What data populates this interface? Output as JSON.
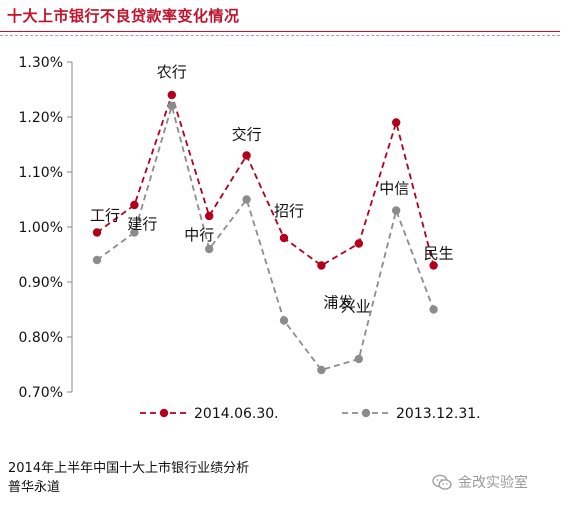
{
  "header": {
    "title": "十大上市银行不良贷款率变化情况"
  },
  "chart_data": {
    "type": "line",
    "categories": [
      "工行",
      "建行",
      "农行",
      "中行",
      "交行",
      "招行",
      "浦发",
      "兴业",
      "中信",
      "民生"
    ],
    "series": [
      {
        "name": "2014.06.30.",
        "color": "#b2001c",
        "dash": true,
        "values": [
          0.99,
          1.04,
          1.24,
          1.02,
          1.13,
          0.98,
          0.93,
          0.97,
          1.19,
          0.93
        ]
      },
      {
        "name": "2013.12.31.",
        "color": "#8c8c8c",
        "dash": true,
        "values": [
          0.94,
          0.99,
          1.22,
          0.96,
          1.05,
          0.83,
          0.74,
          0.76,
          1.03,
          0.85
        ]
      }
    ],
    "ylim": [
      0.7,
      1.3
    ],
    "yticks": [
      "0.70%",
      "0.80%",
      "0.90%",
      "1.00%",
      "1.10%",
      "1.20%",
      "1.30%"
    ],
    "xlabel": "",
    "ylabel": "",
    "grid": false,
    "legend": "bottom"
  },
  "footer": {
    "source_line1": "2014年上半年中国十大上市银行业绩分析",
    "source_line2": "普华永道",
    "watermark": "金改实验室",
    "watermark_icon": "wechat-icon"
  }
}
